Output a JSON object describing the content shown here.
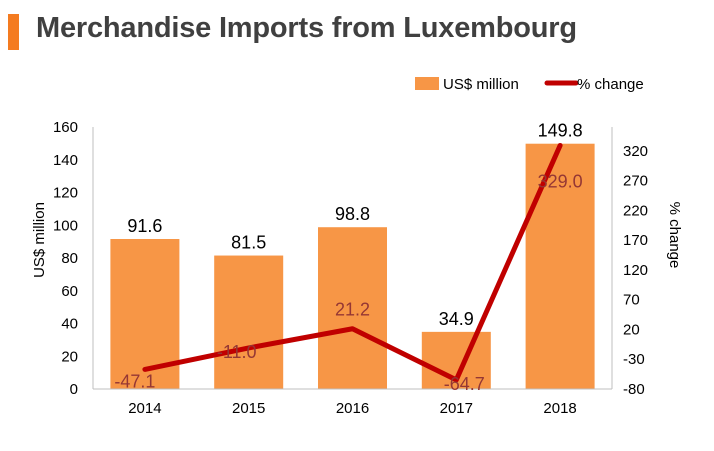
{
  "title": "Merchandise Imports from Luxembourg",
  "colors": {
    "accent": "#f47b20",
    "bar": "#f79646",
    "line": "#c00000",
    "title_text": "#404040",
    "line_label": "#953734"
  },
  "chart_data": {
    "type": "bar",
    "categories": [
      "2014",
      "2015",
      "2016",
      "2017",
      "2018"
    ],
    "series": [
      {
        "name": "US$ million",
        "type": "bar",
        "axis": "left",
        "values": [
          91.6,
          81.5,
          98.8,
          34.9,
          149.8
        ],
        "labels": [
          "91.6",
          "81.5",
          "98.8",
          "34.9",
          "149.8"
        ]
      },
      {
        "name": "% change",
        "type": "line",
        "axis": "right",
        "values": [
          -47.1,
          -11.0,
          21.2,
          -64.7,
          329.0
        ],
        "labels": [
          "-47.1",
          "-11.0",
          "21.2",
          "-64.7",
          "329.0"
        ]
      }
    ],
    "ylabel": "US$ million",
    "ylabel_right": "% change",
    "ylim": [
      0,
      160
    ],
    "ylim_right": [
      -80,
      360
    ],
    "yticks": [
      "0",
      "20",
      "40",
      "60",
      "80",
      "100",
      "120",
      "140",
      "160"
    ],
    "yticks_right": [
      "-80",
      "-30",
      "20",
      "70",
      "120",
      "170",
      "220",
      "270",
      "320"
    ],
    "grid": false,
    "legend_position": "top-right"
  }
}
